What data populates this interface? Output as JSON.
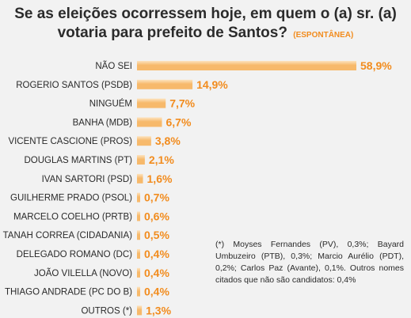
{
  "title": {
    "line1": "Se as eleições ocorressem hoje, em quem o (a) sr. (a)",
    "line2": "votaria para prefeito de Santos?",
    "tag": "(ESPONTÂNEA)"
  },
  "note": "(*) Moyses Fernandes (PV), 0,3%; Bayard Umbuzeiro (PTB), 0,3%; Marcio Aurélio (PDT), 0,2%; Carlos Paz (Avante), 0,1%. Outros nomes citados que não são candidatos: 0,4%",
  "colors": {
    "bar": "#f7b96b",
    "bar_highlight": "#fde3bf",
    "value": "#f28c1e"
  },
  "chart_data": {
    "type": "bar",
    "orientation": "horizontal",
    "title": "Se as eleições ocorressem hoje, em quem o (a) sr. (a) votaria para prefeito de Santos? (ESPONTÂNEA)",
    "categories": [
      "NÃO SEI",
      "ROGERIO SANTOS (PSDB)",
      "NINGUÉM",
      "BANHA (MDB)",
      "VICENTE CASCIONE (PROS)",
      "DOUGLAS MARTINS (PT)",
      "IVAN SARTORI (PSD)",
      "GUILHERME PRADO (PSOL)",
      "MARCELO COELHO   (PRTB)",
      "TANAH CORREA (CIDADANIA)",
      "DELEGADO ROMANO  (DC)",
      "JOÃO VILELLA (NOVO)",
      "THIAGO ANDRADE  (PC DO B)",
      "OUTROS (*)"
    ],
    "values": [
      58.9,
      14.9,
      7.7,
      6.7,
      3.8,
      2.1,
      1.6,
      0.7,
      0.6,
      0.5,
      0.4,
      0.4,
      0.4,
      1.3
    ],
    "value_labels": [
      "58,9%",
      "14,9%",
      "7,7%",
      "6,7%",
      "3,8%",
      "2,1%",
      "1,6%",
      "0,7%",
      "0,6%",
      "0,5%",
      "0,4%",
      "0,4%",
      "0,4%",
      "1,3%"
    ],
    "xlim": [
      0,
      58.9
    ],
    "grid": false,
    "legend": "none"
  }
}
